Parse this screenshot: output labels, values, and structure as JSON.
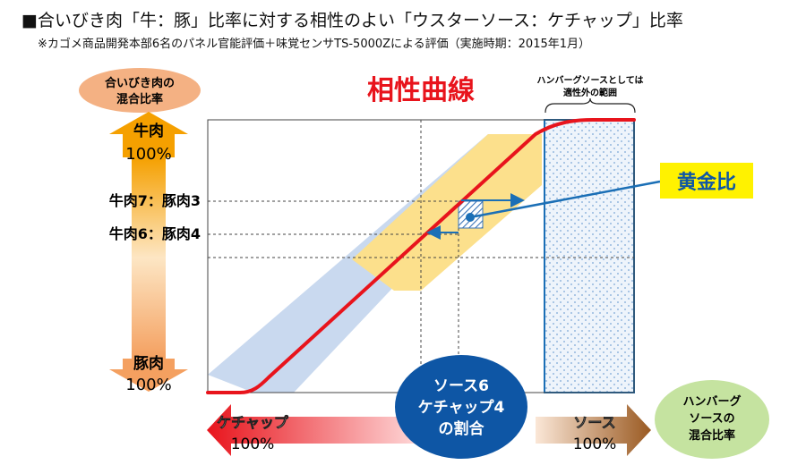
{
  "header": {
    "title": "■合いびき肉「牛：豚」比率に対する相性のよい「ウスターソース：ケチャップ」比率",
    "note": "※カゴメ商品開発本部6名のパネル官能評価＋味覚センサTS-5000Zによる評価（実施時期：2015年1月）"
  },
  "diagram": {
    "curve_title": "相性曲線",
    "out_of_range_line1": "ハンバーグソースとしては",
    "out_of_range_line2": "適性外の範囲",
    "golden_ratio": "黄金比",
    "y_axis": {
      "bubble_line1": "合いびき肉の",
      "bubble_line2": "混合比率",
      "top_label": "牛肉",
      "top_percent": "100%",
      "bottom_label": "豚肉",
      "bottom_percent": "100%",
      "tick_upper": "牛肉7：豚肉3",
      "tick_lower": "牛肉6：豚肉4"
    },
    "x_axis": {
      "left_label": "ケチャップ",
      "left_percent": "100%",
      "right_label": "ソース",
      "right_percent": "100%",
      "bubble_line1": "ハンバーグ",
      "bubble_line2": "ソースの",
      "bubble_line3": "混合比率"
    },
    "center_bubble": {
      "line1": "ソース6",
      "line2": "ケチャップ4",
      "line3": "の割合"
    },
    "colors": {
      "curve": "#e8141c",
      "yellow_band": "#fce08c",
      "blue_band": "#c9d9ef",
      "dotted_region_border": "#1b6fb6",
      "center_bubble": "#0e56a5",
      "golden_box_bg": "#fff200",
      "golden_text": "#0e56a5",
      "left_bubble": "#f4b183",
      "right_bubble": "#c5e3a0"
    }
  }
}
